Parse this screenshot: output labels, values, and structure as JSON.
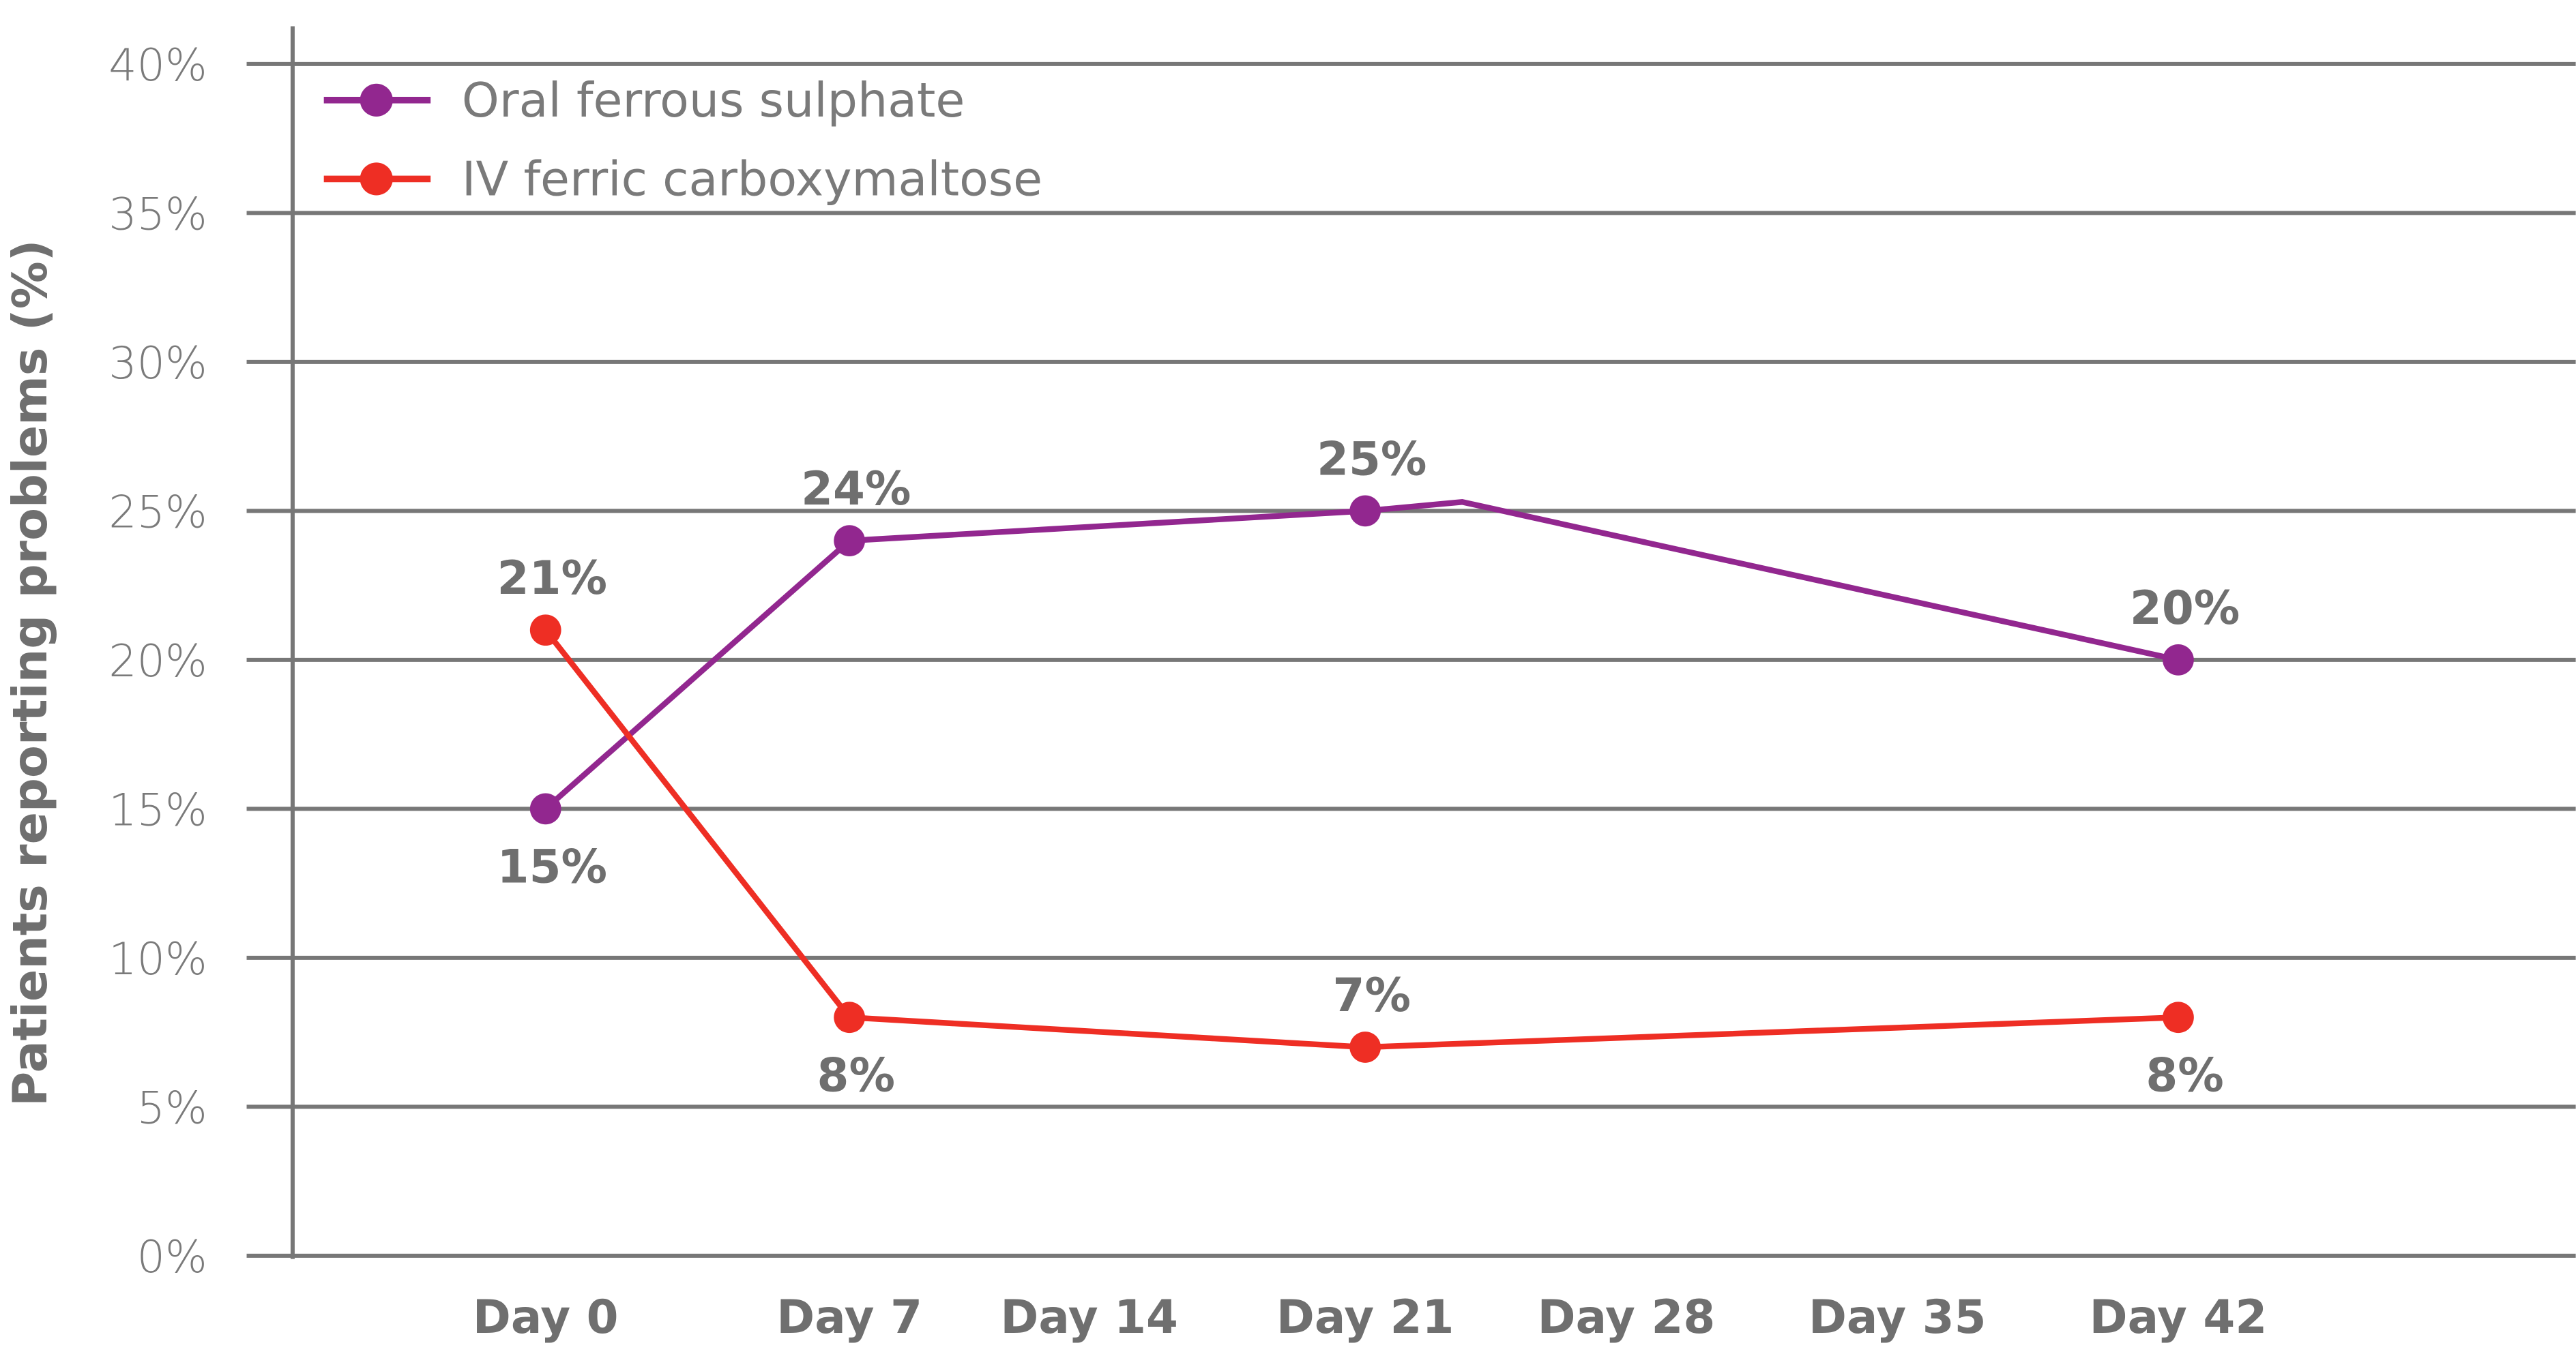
{
  "chart_data": {
    "type": "line",
    "title": "",
    "xlabel": "",
    "ylabel": "Patients reporting problems (%)",
    "ylim": [
      0,
      40
    ],
    "yticks": [
      "0%",
      "5%",
      "10%",
      "15%",
      "20%",
      "25%",
      "30%",
      "35%",
      "40%"
    ],
    "ytick_values": [
      0,
      5,
      10,
      15,
      20,
      25,
      30,
      35,
      40
    ],
    "categories": [
      "Day 0",
      "Day 7",
      "Day 14",
      "Day 21",
      "Day 28",
      "Day 35",
      "Day 42"
    ],
    "category_days": [
      0,
      7,
      14,
      21,
      28,
      35,
      42
    ],
    "grid": true,
    "legend_position": "top-left",
    "series": [
      {
        "name": "Oral ferrous sulphate",
        "color": "#92278f",
        "x": [
          0,
          7,
          21,
          23.6,
          42
        ],
        "values": [
          15,
          24,
          25,
          25.3,
          20
        ],
        "marker": [
          true,
          true,
          true,
          false,
          true
        ],
        "labels": [
          "15%",
          "24%",
          "25%",
          "",
          "20%"
        ],
        "label_pos": [
          "below",
          "above",
          "above",
          "",
          "above"
        ]
      },
      {
        "name": "IV ferric carboxymaltose",
        "color": "#ee2e24",
        "x": [
          0,
          7,
          21,
          42
        ],
        "values": [
          21,
          8,
          7,
          8
        ],
        "marker": [
          true,
          true,
          true,
          true
        ],
        "labels": [
          "21%",
          "8%",
          "7%",
          "8%"
        ],
        "label_pos": [
          "above",
          "below",
          "above",
          "below"
        ]
      }
    ]
  }
}
